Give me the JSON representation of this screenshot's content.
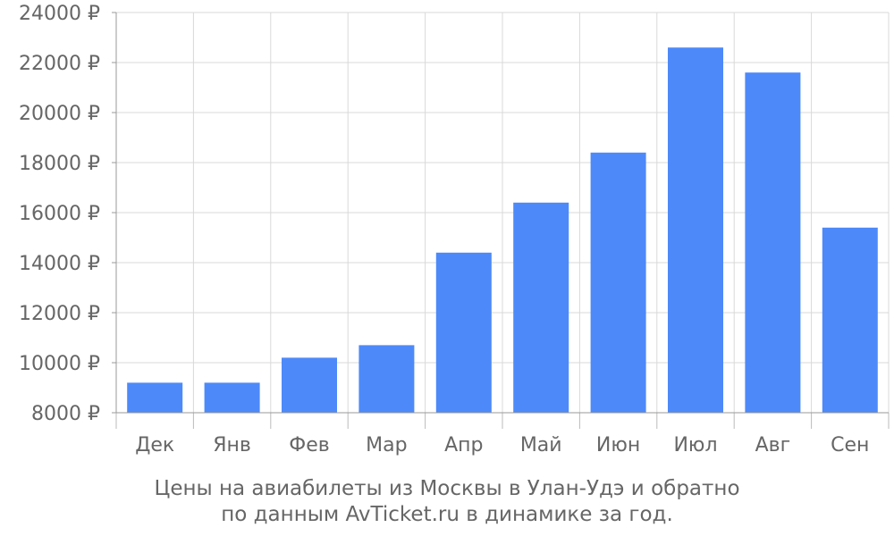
{
  "chart_data": {
    "type": "bar",
    "categories": [
      "Дек",
      "Янв",
      "Фев",
      "Мар",
      "Апр",
      "Май",
      "Июн",
      "Июл",
      "Авг",
      "Сен"
    ],
    "values": [
      9200,
      9200,
      10200,
      10700,
      14400,
      16400,
      18400,
      22600,
      21600,
      15400
    ],
    "ylim": [
      8000,
      24000
    ],
    "yticks": [
      "8000 ₽",
      "10000 ₽",
      "12000 ₽",
      "14000 ₽",
      "16000 ₽",
      "18000 ₽",
      "20000 ₽",
      "22000 ₽",
      "24000 ₽"
    ],
    "ytick_values": [
      8000,
      10000,
      12000,
      14000,
      16000,
      18000,
      20000,
      22000,
      24000
    ],
    "grid": true,
    "bar_color": "#4d89f9",
    "caption_line1": "Цены на авиабилеты из Москвы в Улан-Удэ и обратно",
    "caption_line2": "по данным AvTicket.ru в динамике за год."
  }
}
